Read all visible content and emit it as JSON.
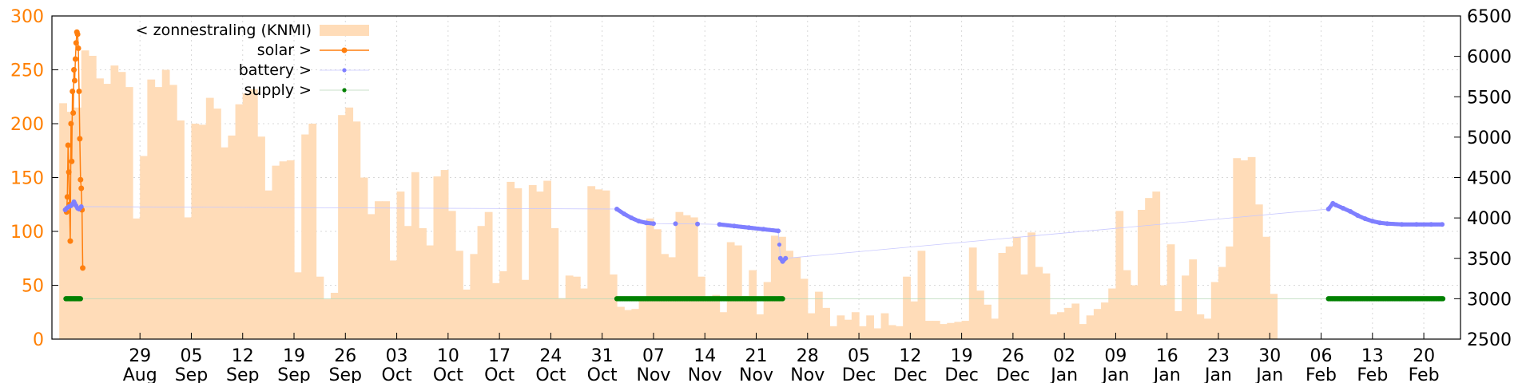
{
  "chart_data": {
    "type": "bar+scatter",
    "grid": true,
    "legend_position": "top-left",
    "y_left": {
      "ylim": [
        0,
        300
      ],
      "ticks": [
        0,
        50,
        100,
        150,
        200,
        250,
        300
      ],
      "color": "#ff7f00"
    },
    "y_right": {
      "ylim": [
        2500,
        6500
      ],
      "ticks": [
        2500,
        3000,
        3500,
        4000,
        4500,
        5000,
        5500,
        6000,
        6500
      ]
    },
    "x": {
      "range_days": [
        0,
        192
      ],
      "ticks": [
        {
          "day": 12,
          "label1": "29",
          "label2": "Aug"
        },
        {
          "day": 19,
          "label1": "05",
          "label2": "Sep"
        },
        {
          "day": 26,
          "label1": "12",
          "label2": "Sep"
        },
        {
          "day": 33,
          "label1": "19",
          "label2": "Sep"
        },
        {
          "day": 40,
          "label1": "26",
          "label2": "Sep"
        },
        {
          "day": 47,
          "label1": "03",
          "label2": "Oct"
        },
        {
          "day": 54,
          "label1": "10",
          "label2": "Oct"
        },
        {
          "day": 61,
          "label1": "17",
          "label2": "Oct"
        },
        {
          "day": 68,
          "label1": "24",
          "label2": "Oct"
        },
        {
          "day": 75,
          "label1": "31",
          "label2": "Oct"
        },
        {
          "day": 82,
          "label1": "07",
          "label2": "Nov"
        },
        {
          "day": 89,
          "label1": "14",
          "label2": "Nov"
        },
        {
          "day": 96,
          "label1": "21",
          "label2": "Nov"
        },
        {
          "day": 103,
          "label1": "28",
          "label2": "Nov"
        },
        {
          "day": 110,
          "label1": "05",
          "label2": "Dec"
        },
        {
          "day": 117,
          "label1": "12",
          "label2": "Dec"
        },
        {
          "day": 124,
          "label1": "19",
          "label2": "Dec"
        },
        {
          "day": 131,
          "label1": "26",
          "label2": "Dec"
        },
        {
          "day": 138,
          "label1": "02",
          "label2": "Jan"
        },
        {
          "day": 145,
          "label1": "09",
          "label2": "Jan"
        },
        {
          "day": 152,
          "label1": "16",
          "label2": "Jan"
        },
        {
          "day": 159,
          "label1": "23",
          "label2": "Jan"
        },
        {
          "day": 166,
          "label1": "30",
          "label2": "Jan"
        },
        {
          "day": 173,
          "label1": "06",
          "label2": "Feb"
        },
        {
          "day": 180,
          "label1": "13",
          "label2": "Feb"
        },
        {
          "day": 187,
          "label1": "20",
          "label2": "Feb"
        }
      ]
    },
    "series": [
      {
        "name": "< zonnestraling (KNMI)",
        "type": "bar",
        "axis": "left",
        "color": "#ffdcb8",
        "values": [
          219,
          211,
          215,
          268,
          263,
          242,
          237,
          254,
          248,
          234,
          112,
          170,
          241,
          234,
          250,
          236,
          203,
          113,
          200,
          199,
          224,
          214,
          178,
          189,
          218,
          228,
          232,
          188,
          138,
          161,
          165,
          166,
          62,
          190,
          200,
          58,
          37,
          43,
          208,
          215,
          202,
          150,
          116,
          128,
          128,
          73,
          137,
          105,
          155,
          103,
          87,
          151,
          157,
          119,
          82,
          46,
          79,
          105,
          118,
          52,
          63,
          146,
          140,
          55,
          143,
          137,
          147,
          103,
          38,
          59,
          58,
          47,
          142,
          139,
          138,
          60,
          30,
          27,
          28,
          37,
          112,
          102,
          79,
          76,
          118,
          115,
          113,
          58,
          39,
          41,
          25,
          90,
          87,
          40,
          64,
          23,
          53,
          96,
          95,
          82,
          76,
          56,
          24,
          44,
          29,
          12,
          22,
          18,
          25,
          12,
          22,
          10,
          24,
          13,
          12,
          58,
          35,
          82,
          17,
          17,
          14,
          15,
          16,
          17,
          85,
          45,
          32,
          19,
          80,
          86,
          95,
          60,
          99,
          67,
          61,
          23,
          25,
          29,
          33,
          14,
          22,
          28,
          34,
          47,
          119,
          64,
          50,
          120,
          131,
          137,
          50,
          88,
          26,
          59,
          74,
          23,
          19,
          53,
          67,
          86,
          168,
          166,
          169,
          125,
          95,
          42
        ]
      },
      {
        "name": "solar >",
        "type": "line",
        "axis": "left",
        "color": "#ff7f0e",
        "points": [
          [
            2.0,
            118
          ],
          [
            2.1,
            132
          ],
          [
            2.2,
            180
          ],
          [
            2.3,
            155
          ],
          [
            2.4,
            125
          ],
          [
            2.5,
            91
          ],
          [
            2.6,
            200
          ],
          [
            2.7,
            165
          ],
          [
            2.8,
            230
          ],
          [
            2.9,
            210
          ],
          [
            3.0,
            250
          ],
          [
            3.1,
            240
          ],
          [
            3.2,
            260
          ],
          [
            3.3,
            275
          ],
          [
            3.4,
            285
          ],
          [
            3.5,
            283
          ],
          [
            3.6,
            270
          ],
          [
            3.7,
            230
          ],
          [
            3.8,
            186
          ],
          [
            3.9,
            148
          ],
          [
            4.0,
            140
          ],
          [
            4.1,
            120
          ],
          [
            4.2,
            66
          ]
        ]
      },
      {
        "name": "battery >",
        "type": "scatter",
        "axis": "right",
        "color": "#7f7fff",
        "points": [
          [
            1.8,
            4100
          ],
          [
            2.0,
            4120
          ],
          [
            2.3,
            4140
          ],
          [
            2.6,
            4150
          ],
          [
            2.8,
            4170
          ],
          [
            3.0,
            4200
          ],
          [
            3.1,
            4180
          ],
          [
            3.3,
            4150
          ],
          [
            3.5,
            4120
          ],
          [
            3.7,
            4110
          ],
          [
            4.0,
            4140
          ],
          [
            77.0,
            4110
          ],
          [
            78.0,
            4050
          ],
          [
            79.0,
            4000
          ],
          [
            80.0,
            3960
          ],
          [
            81.0,
            3940
          ],
          [
            82.0,
            3930
          ],
          [
            85.0,
            3928
          ],
          [
            88.0,
            3925
          ],
          [
            91.0,
            3920
          ],
          [
            93.0,
            3900
          ],
          [
            95.0,
            3880
          ],
          [
            97.0,
            3860
          ],
          [
            99.0,
            3840
          ],
          [
            99.3,
            3500
          ],
          [
            99.6,
            3460
          ],
          [
            100.0,
            3500
          ],
          [
            174.0,
            4110
          ],
          [
            174.6,
            4180
          ],
          [
            175.0,
            4160
          ],
          [
            176.0,
            4120
          ],
          [
            177.0,
            4080
          ],
          [
            178.0,
            4030
          ],
          [
            179.0,
            3990
          ],
          [
            180.0,
            3960
          ],
          [
            181.0,
            3940
          ],
          [
            182.0,
            3930
          ],
          [
            184.0,
            3920
          ],
          [
            186.0,
            3920
          ],
          [
            188.0,
            3920
          ],
          [
            189.5,
            3920
          ]
        ]
      },
      {
        "name": "supply >",
        "type": "scatter",
        "axis": "right",
        "color": "#008000",
        "points": [
          [
            1.9,
            3000
          ],
          [
            2.3,
            3000
          ],
          [
            2.7,
            3000
          ],
          [
            3.1,
            3000
          ],
          [
            3.5,
            3000
          ],
          [
            3.9,
            3000
          ],
          [
            77.0,
            3000
          ],
          [
            78.0,
            3000
          ],
          [
            79.0,
            3000
          ],
          [
            80.0,
            3000
          ],
          [
            81.0,
            3000
          ],
          [
            82.0,
            3000
          ],
          [
            83.0,
            3000
          ],
          [
            84.0,
            3000
          ],
          [
            85.0,
            3000
          ],
          [
            86.0,
            3000
          ],
          [
            87.0,
            3000
          ],
          [
            88.0,
            3000
          ],
          [
            89.0,
            3000
          ],
          [
            90.0,
            3000
          ],
          [
            91.0,
            3000
          ],
          [
            92.0,
            3000
          ],
          [
            93.0,
            3000
          ],
          [
            94.0,
            3000
          ],
          [
            95.0,
            3000
          ],
          [
            96.0,
            3000
          ],
          [
            97.0,
            3000
          ],
          [
            98.0,
            3000
          ],
          [
            99.0,
            3000
          ],
          [
            99.6,
            3000
          ],
          [
            174.0,
            3000
          ],
          [
            175.0,
            3000
          ],
          [
            176.0,
            3000
          ],
          [
            177.0,
            3000
          ],
          [
            178.0,
            3000
          ],
          [
            179.0,
            3000
          ],
          [
            180.0,
            3000
          ],
          [
            181.0,
            3000
          ],
          [
            182.0,
            3000
          ],
          [
            183.0,
            3000
          ],
          [
            184.0,
            3000
          ],
          [
            185.0,
            3000
          ],
          [
            186.0,
            3000
          ],
          [
            187.0,
            3000
          ],
          [
            188.0,
            3000
          ],
          [
            189.0,
            3000
          ],
          [
            189.6,
            3000
          ]
        ]
      }
    ]
  }
}
